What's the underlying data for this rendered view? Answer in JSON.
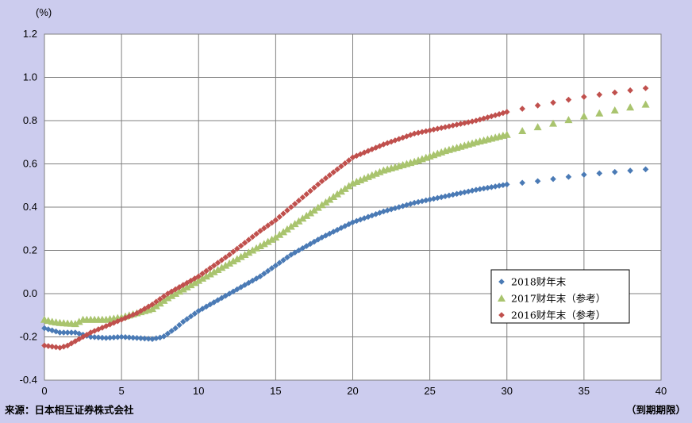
{
  "chart_data": {
    "type": "scatter",
    "unit_label": "(%)",
    "xlim": [
      0,
      40
    ],
    "ylim": [
      -0.4,
      1.2
    ],
    "x_ticks": [
      0,
      5,
      10,
      15,
      20,
      25,
      30,
      35,
      40
    ],
    "y_ticks": [
      "-0.4",
      "-0.2",
      "0.0",
      "0.2",
      "0.4",
      "0.6",
      "0.8",
      "1.0",
      "1.2"
    ],
    "grid": true,
    "legend_position": "right-middle",
    "source_label": "来源：日本相互证券株式会社",
    "x_unit_label": "（到期期限）",
    "series": [
      {
        "name": "2018财年末",
        "marker": "diamond",
        "color": "#4a7ab5",
        "anchors": [
          [
            0,
            -0.16
          ],
          [
            0.5,
            -0.17
          ],
          [
            1,
            -0.18
          ],
          [
            2,
            -0.18
          ],
          [
            3,
            -0.2
          ],
          [
            4,
            -0.205
          ],
          [
            5,
            -0.2
          ],
          [
            6,
            -0.205
          ],
          [
            7,
            -0.21
          ],
          [
            7.7,
            -0.2
          ],
          [
            8.5,
            -0.16
          ],
          [
            9,
            -0.13
          ],
          [
            10,
            -0.08
          ],
          [
            12,
            0.0
          ],
          [
            14,
            0.08
          ],
          [
            15,
            0.13
          ],
          [
            16,
            0.18
          ],
          [
            18,
            0.26
          ],
          [
            20,
            0.33
          ],
          [
            22,
            0.38
          ],
          [
            24,
            0.42
          ],
          [
            26,
            0.45
          ],
          [
            28,
            0.48
          ],
          [
            30,
            0.505
          ],
          [
            32,
            0.52
          ],
          [
            35,
            0.55
          ],
          [
            39,
            0.575
          ]
        ]
      },
      {
        "name": "2017财年末（参考）",
        "marker": "triangle",
        "color": "#a9c46e",
        "anchors": [
          [
            0,
            -0.12
          ],
          [
            0.5,
            -0.13
          ],
          [
            1,
            -0.135
          ],
          [
            2,
            -0.14
          ],
          [
            2.5,
            -0.12
          ],
          [
            4,
            -0.12
          ],
          [
            5,
            -0.11
          ],
          [
            6,
            -0.09
          ],
          [
            7,
            -0.07
          ],
          [
            8,
            -0.02
          ],
          [
            10,
            0.06
          ],
          [
            12,
            0.14
          ],
          [
            14,
            0.22
          ],
          [
            15,
            0.26
          ],
          [
            16,
            0.31
          ],
          [
            18,
            0.41
          ],
          [
            20,
            0.51
          ],
          [
            22,
            0.57
          ],
          [
            24,
            0.61
          ],
          [
            26,
            0.66
          ],
          [
            28,
            0.7
          ],
          [
            30,
            0.735
          ],
          [
            32,
            0.77
          ],
          [
            35,
            0.82
          ],
          [
            39,
            0.875
          ]
        ]
      },
      {
        "name": "2016财年末（参考）",
        "marker": "diamond",
        "color": "#c0504d",
        "anchors": [
          [
            0,
            -0.24
          ],
          [
            0.5,
            -0.245
          ],
          [
            1,
            -0.25
          ],
          [
            1.5,
            -0.24
          ],
          [
            2,
            -0.22
          ],
          [
            3,
            -0.18
          ],
          [
            4,
            -0.15
          ],
          [
            5,
            -0.12
          ],
          [
            6,
            -0.09
          ],
          [
            7,
            -0.05
          ],
          [
            8,
            0.0
          ],
          [
            10,
            0.08
          ],
          [
            12,
            0.18
          ],
          [
            14,
            0.29
          ],
          [
            15,
            0.34
          ],
          [
            16,
            0.4
          ],
          [
            18,
            0.52
          ],
          [
            20,
            0.63
          ],
          [
            22,
            0.69
          ],
          [
            24,
            0.74
          ],
          [
            26,
            0.77
          ],
          [
            28,
            0.8
          ],
          [
            30,
            0.84
          ],
          [
            32,
            0.87
          ],
          [
            35,
            0.91
          ],
          [
            39,
            0.95
          ]
        ]
      }
    ],
    "step": 0.25,
    "sparse_after": 30
  }
}
